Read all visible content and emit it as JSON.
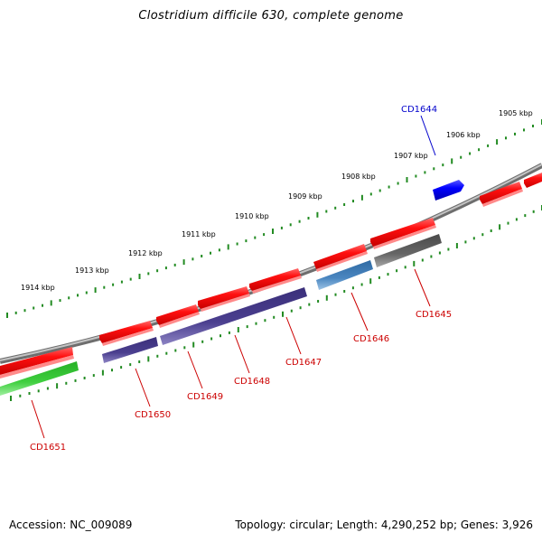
{
  "title": "Clostridium difficile 630, complete genome",
  "footer": {
    "accession": "Accession: NC_009089",
    "summary": "Topology: circular; Length: 4,290,252 bp; Genes: 3,926"
  },
  "colors": {
    "backbone": "#8c8c8c",
    "ticks": "#228b22",
    "forward_gene": "#ff1010",
    "reverse_dark": "#4b3f8f",
    "reverse_gray": "#666666",
    "reverse_steel": "#4a86c0",
    "reverse_green": "#3fcf3f",
    "highlight_gene": "#0000ff",
    "label_red": "#cc0000",
    "label_blue": "#0000cc"
  },
  "scale_labels": [
    "1905 kbp",
    "1906 kbp",
    "1907 kbp",
    "1908 kbp",
    "1909 kbp",
    "1910 kbp",
    "1911 kbp",
    "1912 kbp",
    "1913 kbp",
    "1914 kbp"
  ],
  "gene_labels": [
    {
      "name": "CD1644",
      "color": "blue"
    },
    {
      "name": "CD1645",
      "color": "red"
    },
    {
      "name": "CD1646",
      "color": "red"
    },
    {
      "name": "CD1647",
      "color": "red"
    },
    {
      "name": "CD1648",
      "color": "red"
    },
    {
      "name": "CD1649",
      "color": "red"
    },
    {
      "name": "CD1650",
      "color": "red"
    },
    {
      "name": "CD1651",
      "color": "red"
    }
  ]
}
